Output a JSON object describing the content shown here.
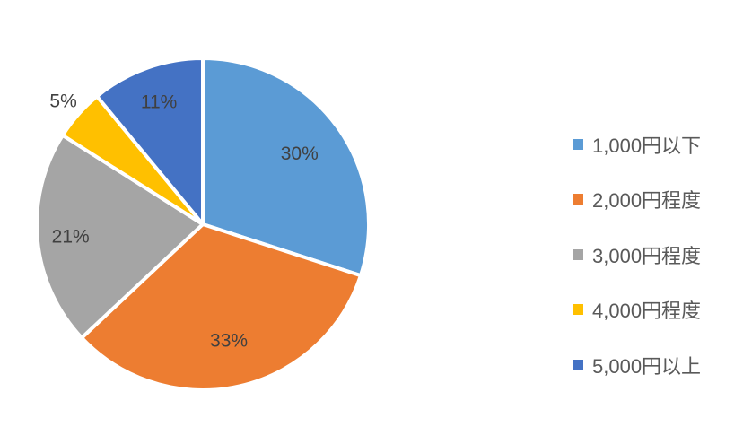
{
  "chart_data": {
    "type": "pie",
    "title": "",
    "start_angle": "top (12 o'clock)",
    "direction": "clockwise",
    "legend_position": "right",
    "slices": [
      {
        "label": "1,000円以下",
        "value": 30,
        "data_label": "30%",
        "color": "#5B9BD5"
      },
      {
        "label": "2,000円程度",
        "value": 33,
        "data_label": "33%",
        "color": "#ED7D31"
      },
      {
        "label": "3,000円程度",
        "value": 21,
        "data_label": "21%",
        "color": "#A5A5A5"
      },
      {
        "label": "4,000円程度",
        "value": 5,
        "data_label": "5%",
        "color": "#FFC000"
      },
      {
        "label": "5,000円以上",
        "value": 11,
        "data_label": "11%",
        "color": "#4472C4"
      }
    ]
  }
}
